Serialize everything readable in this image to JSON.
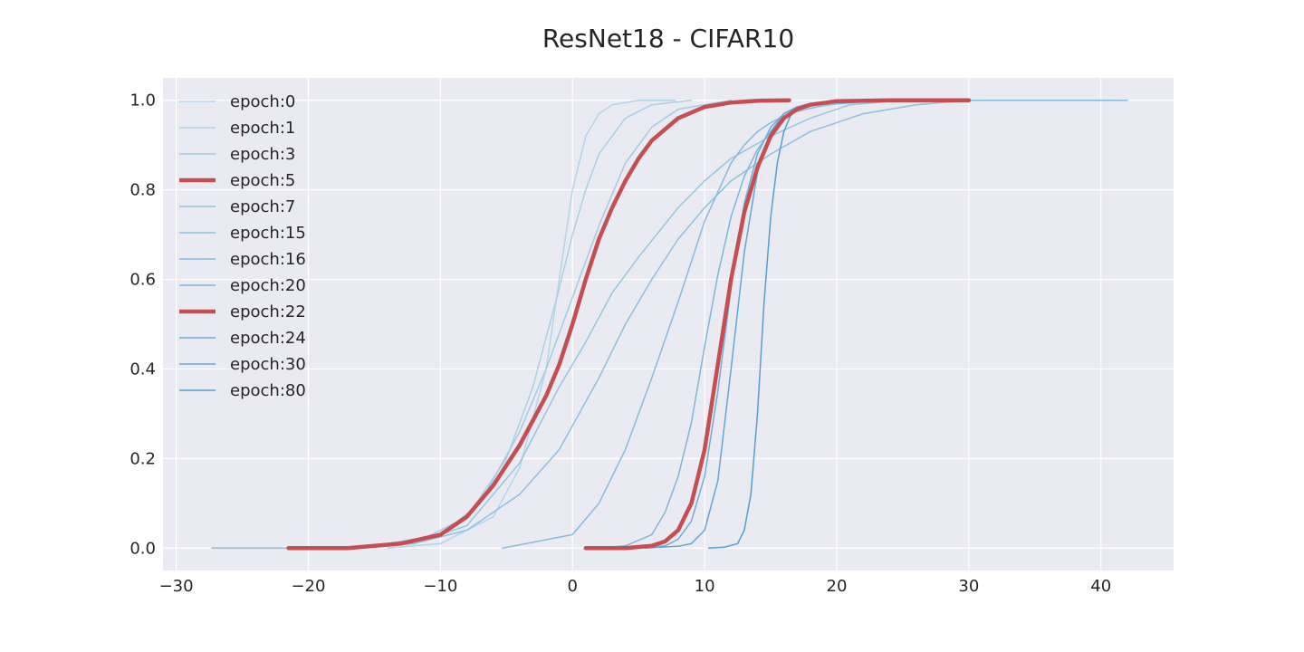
{
  "chart_data": {
    "type": "line",
    "title": "ResNet18 - CIFAR10",
    "xlabel": "",
    "ylabel": "",
    "xlim": [
      -31,
      45.5
    ],
    "ylim": [
      -0.05,
      1.05
    ],
    "xticks": [
      -30,
      -20,
      -10,
      0,
      10,
      20,
      30,
      40
    ],
    "xtick_labels": [
      "−30",
      "−20",
      "−10",
      "0",
      "10",
      "20",
      "30",
      "40"
    ],
    "yticks": [
      0.0,
      0.2,
      0.4,
      0.6,
      0.8,
      1.0
    ],
    "ytick_labels": [
      "0.0",
      "0.2",
      "0.4",
      "0.6",
      "0.8",
      "1.0"
    ],
    "grid": true,
    "background": "#eaeaf2",
    "legend_position": "top-left",
    "series": [
      {
        "name": "epoch:0",
        "color": "#b3d4e9",
        "width": 1.5,
        "x": [
          -14,
          -10,
          -6,
          -4,
          -2,
          -1,
          0,
          1,
          2,
          3,
          5,
          7.8
        ],
        "y": [
          0.0,
          0.01,
          0.07,
          0.18,
          0.4,
          0.6,
          0.8,
          0.92,
          0.97,
          0.99,
          1.0,
          1.0
        ]
      },
      {
        "name": "epoch:1",
        "color": "#abcfe6",
        "width": 1.5,
        "x": [
          -16,
          -12,
          -8,
          -5,
          -3,
          -1,
          0,
          1,
          2,
          4,
          6,
          9
        ],
        "y": [
          0.0,
          0.01,
          0.07,
          0.2,
          0.36,
          0.58,
          0.7,
          0.8,
          0.88,
          0.96,
          0.99,
          1.0
        ]
      },
      {
        "name": "epoch:3",
        "color": "#a3cae4",
        "width": 1.5,
        "x": [
          -18,
          -14,
          -10,
          -7,
          -4,
          -2,
          0,
          2,
          4,
          6,
          8,
          12
        ],
        "y": [
          0.0,
          0.01,
          0.03,
          0.1,
          0.26,
          0.4,
          0.56,
          0.72,
          0.86,
          0.94,
          0.98,
          1.0
        ]
      },
      {
        "name": "epoch:5",
        "color": "#c44e52",
        "width": 4.5,
        "x": [
          -21.5,
          -17,
          -13,
          -10,
          -8,
          -6,
          -4,
          -2,
          -1,
          0,
          1,
          2,
          3,
          4,
          5,
          6,
          8,
          10,
          12,
          14,
          16.4
        ],
        "y": [
          0.0,
          0.0,
          0.01,
          0.03,
          0.07,
          0.14,
          0.23,
          0.34,
          0.41,
          0.5,
          0.6,
          0.69,
          0.76,
          0.82,
          0.87,
          0.91,
          0.96,
          0.985,
          0.995,
          0.999,
          1.0
        ]
      },
      {
        "name": "epoch:7",
        "color": "#97c4e0",
        "width": 1.5,
        "x": [
          -17,
          -12,
          -8,
          -4,
          -1,
          1,
          3,
          5,
          8,
          10,
          12,
          15,
          18,
          21,
          25
        ],
        "y": [
          0.0,
          0.01,
          0.05,
          0.19,
          0.36,
          0.46,
          0.57,
          0.65,
          0.76,
          0.82,
          0.87,
          0.92,
          0.96,
          0.99,
          1.0
        ]
      },
      {
        "name": "epoch:15",
        "color": "#8ebfde",
        "width": 1.5,
        "x": [
          -27.3,
          -24,
          -20,
          -16,
          -12,
          -8,
          -4,
          -1,
          2,
          4,
          6,
          8,
          10,
          12,
          15,
          18,
          22,
          26,
          30,
          34.5
        ],
        "y": [
          0.0,
          0.0,
          0.0,
          0.002,
          0.01,
          0.04,
          0.12,
          0.22,
          0.38,
          0.5,
          0.6,
          0.69,
          0.76,
          0.82,
          0.88,
          0.93,
          0.97,
          0.99,
          1.0,
          1.0
        ]
      },
      {
        "name": "epoch:16",
        "color": "#85bade",
        "width": 1.5,
        "x": [
          -5.3,
          0,
          2,
          4,
          6,
          8,
          10,
          12,
          13,
          14,
          15,
          16,
          17,
          18,
          19,
          20,
          22,
          24,
          28,
          35,
          42
        ],
        "y": [
          0.0,
          0.03,
          0.1,
          0.22,
          0.38,
          0.55,
          0.73,
          0.86,
          0.9,
          0.93,
          0.95,
          0.965,
          0.975,
          0.982,
          0.988,
          0.992,
          0.996,
          0.998,
          1.0,
          1.0,
          1.0
        ]
      },
      {
        "name": "epoch:20",
        "color": "#7eb5db",
        "width": 1.5,
        "x": [
          2,
          4,
          6,
          7,
          8,
          9,
          10,
          11,
          12,
          13,
          14,
          15,
          16,
          17,
          18,
          20,
          24
        ],
        "y": [
          0.0,
          0.005,
          0.03,
          0.08,
          0.16,
          0.28,
          0.45,
          0.61,
          0.74,
          0.83,
          0.89,
          0.93,
          0.96,
          0.98,
          0.99,
          0.998,
          1.0
        ]
      },
      {
        "name": "epoch:22",
        "color": "#c44e52",
        "width": 4.5,
        "x": [
          1,
          4,
          6,
          7,
          8,
          9,
          10,
          11,
          12,
          13,
          14,
          15,
          16,
          17,
          18,
          20,
          24,
          30
        ],
        "y": [
          0.0,
          0.0,
          0.005,
          0.015,
          0.04,
          0.1,
          0.22,
          0.41,
          0.6,
          0.75,
          0.85,
          0.92,
          0.96,
          0.98,
          0.99,
          0.998,
          1.0,
          1.0
        ]
      },
      {
        "name": "epoch:24",
        "color": "#6fadd6",
        "width": 1.5,
        "x": [
          5,
          7,
          8,
          9,
          10,
          11,
          12,
          13,
          14,
          15,
          16,
          17,
          18,
          20,
          24
        ],
        "y": [
          0.0,
          0.005,
          0.02,
          0.06,
          0.16,
          0.35,
          0.58,
          0.77,
          0.88,
          0.94,
          0.97,
          0.985,
          0.993,
          0.998,
          1.0
        ]
      },
      {
        "name": "epoch:30",
        "color": "#63a6d3",
        "width": 1.5,
        "x": [
          5.5,
          8,
          9,
          10,
          11,
          12,
          13,
          14,
          15,
          16,
          17,
          18,
          20,
          24
        ],
        "y": [
          0.0,
          0.004,
          0.01,
          0.04,
          0.15,
          0.4,
          0.66,
          0.84,
          0.93,
          0.97,
          0.985,
          0.993,
          0.998,
          1.0
        ]
      },
      {
        "name": "epoch:80",
        "color": "#559fd0",
        "width": 1.5,
        "x": [
          10.3,
          11.5,
          12.5,
          13,
          13.5,
          14,
          14.5,
          15,
          15.5,
          16,
          16.5,
          17,
          18,
          20,
          24
        ],
        "y": [
          0.0,
          0.002,
          0.01,
          0.04,
          0.12,
          0.3,
          0.55,
          0.74,
          0.86,
          0.93,
          0.965,
          0.98,
          0.993,
          0.999,
          1.0
        ]
      }
    ]
  }
}
